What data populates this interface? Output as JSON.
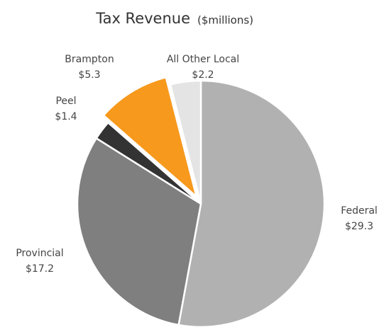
{
  "chart_data": {
    "type": "pie",
    "title": "Tax Revenue",
    "subtitle": "($millions)",
    "categories": [
      "Federal",
      "Provincial",
      "Peel",
      "Brampton",
      "All Other Local"
    ],
    "values": [
      29.3,
      17.2,
      1.4,
      5.3,
      2.2
    ],
    "value_labels": [
      "$29.3",
      "$17.2",
      "$1.4",
      "$5.3",
      "$2.2"
    ],
    "colors": [
      "#b1b1b1",
      "#7f7f7f",
      "#333333",
      "#f7991c",
      "#e4e4e4"
    ]
  }
}
